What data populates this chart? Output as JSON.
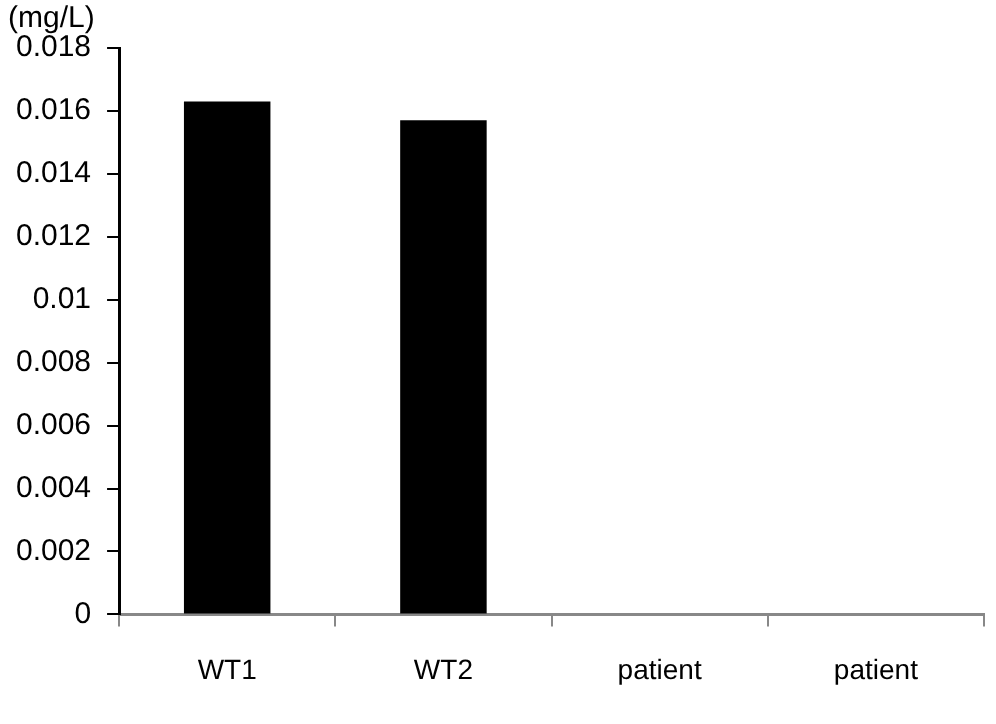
{
  "chart_data": {
    "type": "bar",
    "ylabel": "(mg/L)",
    "categories": [
      "WT1",
      "WT2",
      "patient",
      "patient"
    ],
    "values": [
      0.0163,
      0.0157,
      0,
      0
    ],
    "color": "#000000",
    "ylim": [
      0,
      0.018
    ],
    "yticks": [
      0,
      0.002,
      0.004,
      0.006,
      0.008,
      0.01,
      0.012,
      0.014,
      0.016,
      0.018
    ],
    "grid": false,
    "legend": false
  }
}
